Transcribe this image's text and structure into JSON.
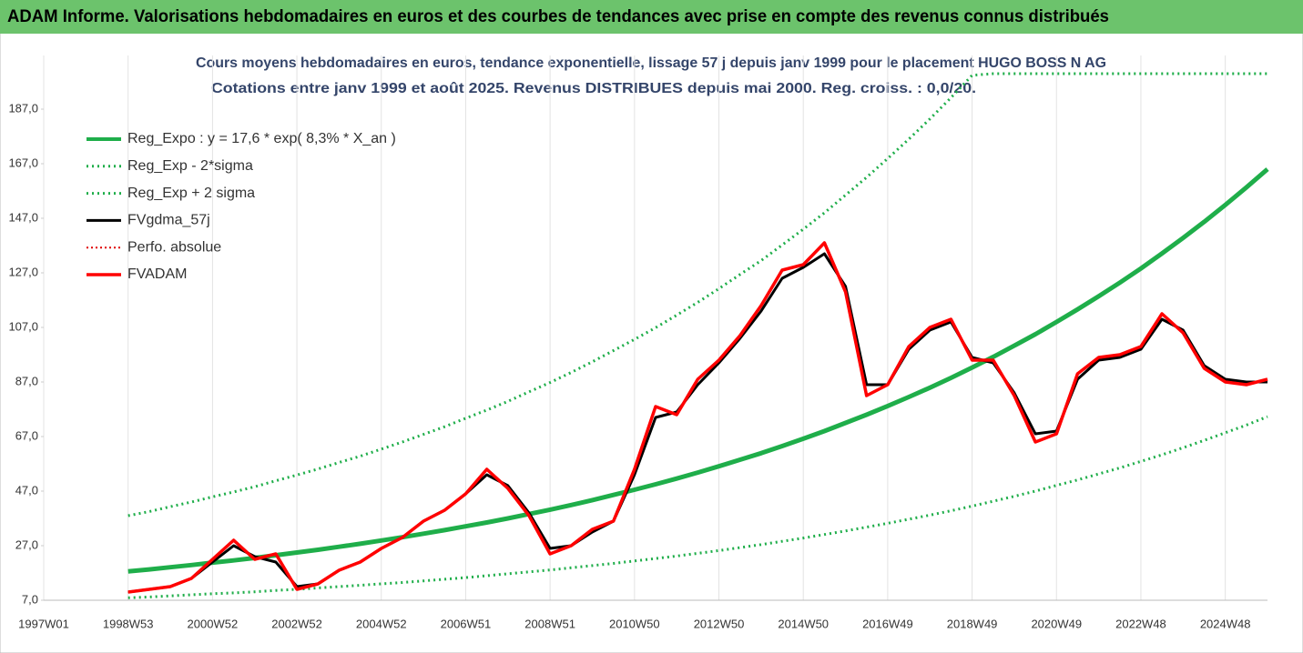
{
  "header": {
    "title": "ADAM Informe. Valorisations hebdomadaires en euros et des courbes de tendances avec prise en compte des revenus connus distribués"
  },
  "chart_data": {
    "type": "line",
    "title": "Cours moyens hebdomadaires en euros, tendance exponentielle, lissage 57 j depuis janv 1999  pour le placement HUGO BOSS N AG",
    "subtitle": "Cotations entre janv 1999 et août 2025. Revenus DISTRIBUES depuis mai 2000. Reg. croiss. : 0,0/20.",
    "categories": [
      "1997W01",
      null,
      null,
      null,
      "1998W53",
      null,
      null,
      null,
      "2000W52",
      null,
      null,
      null,
      "2002W52",
      null,
      null,
      null,
      "2004W52",
      null,
      null,
      null,
      "2006W51",
      null,
      null,
      null,
      "2008W51",
      null,
      null,
      null,
      "2010W50",
      null,
      null,
      null,
      "2012W50",
      null,
      null,
      null,
      "2014W50",
      null,
      null,
      null,
      "2016W49",
      null,
      null,
      null,
      "2018W49",
      null,
      null,
      null,
      "2020W49",
      null,
      null,
      null,
      "2022W48",
      null,
      null,
      null,
      "2024W48",
      null,
      null
    ],
    "ylim": [
      7,
      200
    ],
    "yticks": [
      {
        "value": 7,
        "label": "7,0"
      },
      {
        "value": 27,
        "label": "27,0"
      },
      {
        "value": 47,
        "label": "47,0"
      },
      {
        "value": 67,
        "label": "67,0"
      },
      {
        "value": 87,
        "label": "87,0"
      },
      {
        "value": 107,
        "label": "107,0"
      },
      {
        "value": 127,
        "label": "127,0"
      },
      {
        "value": 147,
        "label": "147,0"
      },
      {
        "value": 167,
        "label": "167,0"
      },
      {
        "value": 187,
        "label": "187,0"
      }
    ],
    "grid": true,
    "series": [
      {
        "name": "Reg_Expo : y = 17,6 * exp( 8,3% *  X_an )",
        "color": "#1fae4a",
        "style": "solid",
        "width": 5,
        "values": [
          null,
          null,
          null,
          null,
          17.6,
          18.3,
          19.1,
          19.9,
          20.8,
          21.6,
          22.5,
          23.5,
          24.5,
          25.5,
          26.6,
          27.7,
          28.9,
          30.1,
          31.4,
          32.7,
          34.1,
          35.5,
          37.0,
          38.6,
          40.2,
          41.9,
          43.7,
          45.6,
          47.5,
          49.5,
          51.6,
          53.8,
          56.1,
          58.5,
          60.9,
          63.5,
          66.2,
          69.0,
          72.0,
          75.0,
          78.2,
          81.5,
          84.9,
          88.5,
          92.3,
          96.2,
          100.3,
          104.5,
          109.0,
          113.6,
          118.4,
          123.4,
          128.6,
          134.1,
          139.8,
          145.7,
          151.9,
          158.3,
          165.0
        ]
      },
      {
        "name": "Reg_Exp - 2*sigma",
        "color": "#1fae4a",
        "style": "dotted",
        "width": 3,
        "values": [
          null,
          null,
          null,
          null,
          7.9,
          8.2,
          8.6,
          9.0,
          9.4,
          9.7,
          10.1,
          10.6,
          11.0,
          11.5,
          12.0,
          12.5,
          13.0,
          13.5,
          14.1,
          14.7,
          15.3,
          16.0,
          16.7,
          17.4,
          18.1,
          18.9,
          19.7,
          20.5,
          21.4,
          22.3,
          23.2,
          24.2,
          25.2,
          26.3,
          27.4,
          28.6,
          29.8,
          31.1,
          32.4,
          33.8,
          35.2,
          36.7,
          38.2,
          39.8,
          41.5,
          43.3,
          45.1,
          47.0,
          49.1,
          51.1,
          53.3,
          55.5,
          57.9,
          60.3,
          62.9,
          65.6,
          68.4,
          71.2,
          74.3
        ]
      },
      {
        "name": "Reg_Exp + 2 sigma",
        "color": "#1fae4a",
        "style": "dotted",
        "width": 3,
        "values": [
          null,
          null,
          null,
          null,
          38.0,
          39.5,
          41.3,
          43.0,
          44.9,
          46.7,
          48.6,
          50.8,
          52.9,
          55.1,
          57.5,
          59.8,
          62.4,
          65.0,
          67.8,
          70.6,
          73.7,
          76.7,
          79.9,
          83.4,
          86.8,
          90.5,
          94.4,
          98.5,
          102.6,
          106.9,
          111.5,
          116.2,
          121.2,
          126.4,
          131.5,
          137.2,
          143.0,
          149.0,
          155.5,
          162.0,
          168.9,
          176.0,
          183.4,
          191.2,
          199.4,
          200,
          200,
          200,
          200,
          200,
          200,
          200,
          200,
          200,
          200,
          200,
          200,
          200,
          200
        ]
      },
      {
        "name": "FVgdma_57j",
        "color": "#000000",
        "style": "solid",
        "width": 3,
        "values": [
          null,
          null,
          null,
          null,
          10,
          11,
          12,
          15,
          21,
          27,
          23,
          21,
          12,
          13,
          18,
          21,
          26,
          30,
          36,
          40,
          46,
          53,
          49,
          39,
          26,
          27,
          32,
          36,
          53,
          74,
          76,
          86,
          94,
          103,
          113,
          125,
          129,
          134,
          122,
          86,
          86,
          99,
          106,
          109,
          96,
          94,
          83,
          68,
          69,
          88,
          95,
          96,
          99,
          110,
          106,
          93,
          88,
          87,
          87
        ]
      },
      {
        "name": "Perfo. absolue",
        "color": "#e00000",
        "style": "dotted",
        "width": 2,
        "values": [
          null,
          null,
          null,
          null,
          10,
          11,
          12,
          15,
          22,
          29,
          22,
          24,
          11,
          13,
          18,
          21,
          26,
          30,
          36,
          40,
          46,
          55,
          48,
          38,
          24,
          27,
          33,
          36,
          55,
          78,
          75,
          88,
          95,
          104,
          115,
          128,
          130,
          138,
          120,
          82,
          86,
          100,
          107,
          110,
          95,
          95,
          82,
          65,
          68,
          90,
          96,
          97,
          100,
          112,
          105,
          92,
          87,
          86,
          88
        ]
      },
      {
        "name": "FVADAM",
        "color": "#ff0000",
        "style": "solid",
        "width": 3.5,
        "values": [
          null,
          null,
          null,
          null,
          10,
          11,
          12,
          15,
          22,
          29,
          22,
          24,
          11,
          13,
          18,
          21,
          26,
          30,
          36,
          40,
          46,
          55,
          48,
          38,
          24,
          27,
          33,
          36,
          55,
          78,
          75,
          88,
          95,
          104,
          115,
          128,
          130,
          138,
          120,
          82,
          86,
          100,
          107,
          110,
          95,
          95,
          82,
          65,
          68,
          90,
          96,
          97,
          100,
          112,
          105,
          92,
          87,
          86,
          88
        ]
      }
    ]
  }
}
